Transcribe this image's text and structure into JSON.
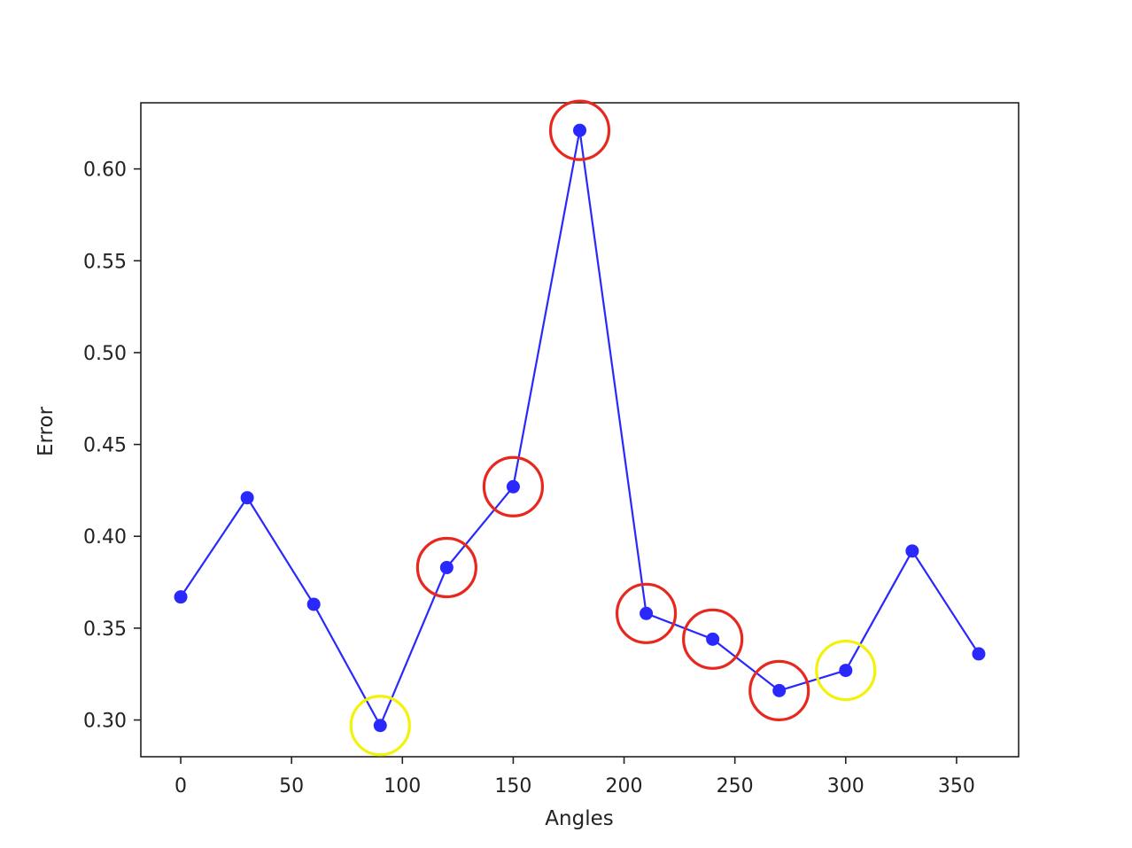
{
  "chart_data": {
    "type": "line",
    "title": "",
    "xlabel": "Angles",
    "ylabel": "Error",
    "xlim": [
      -18,
      378
    ],
    "ylim": [
      0.28,
      0.636
    ],
    "xticks": [
      0,
      50,
      100,
      150,
      200,
      250,
      300,
      350
    ],
    "yticks": [
      0.3,
      0.35,
      0.4,
      0.45,
      0.5,
      0.55,
      0.6
    ],
    "xtick_labels": [
      "0",
      "50",
      "100",
      "150",
      "200",
      "250",
      "300",
      "350"
    ],
    "ytick_labels": [
      "0.30",
      "0.35",
      "0.40",
      "0.45",
      "0.50",
      "0.55",
      "0.60"
    ],
    "grid": false,
    "series": [
      {
        "color": "#2828ff",
        "marker": "circle",
        "x": [
          0,
          30,
          60,
          90,
          120,
          150,
          180,
          210,
          240,
          270,
          300,
          330,
          360
        ],
        "y": [
          0.367,
          0.421,
          0.363,
          0.297,
          0.383,
          0.427,
          0.621,
          0.358,
          0.344,
          0.316,
          0.327,
          0.392,
          0.336
        ]
      }
    ],
    "annotations": [
      {
        "x": 90,
        "y": 0.297,
        "color": "#f2f20a",
        "shape": "circle"
      },
      {
        "x": 120,
        "y": 0.383,
        "color": "#e8281e",
        "shape": "circle"
      },
      {
        "x": 150,
        "y": 0.427,
        "color": "#e8281e",
        "shape": "circle"
      },
      {
        "x": 180,
        "y": 0.621,
        "color": "#e8281e",
        "shape": "circle"
      },
      {
        "x": 210,
        "y": 0.358,
        "color": "#e8281e",
        "shape": "circle"
      },
      {
        "x": 240,
        "y": 0.344,
        "color": "#e8281e",
        "shape": "circle"
      },
      {
        "x": 270,
        "y": 0.316,
        "color": "#e8281e",
        "shape": "circle"
      },
      {
        "x": 300,
        "y": 0.327,
        "color": "#f2f20a",
        "shape": "circle"
      }
    ]
  }
}
